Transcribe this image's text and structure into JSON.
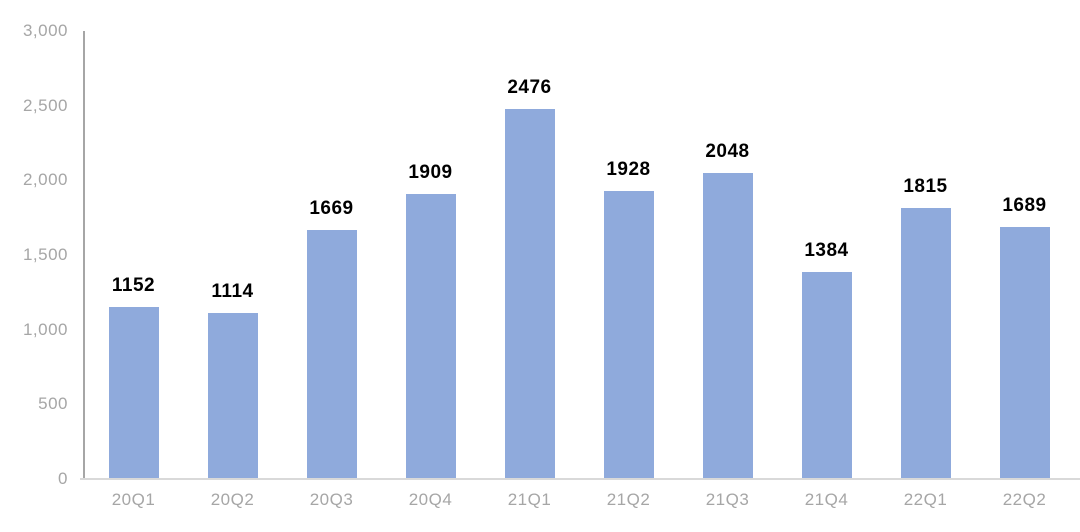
{
  "chart_data": {
    "type": "bar",
    "categories": [
      "20Q1",
      "20Q2",
      "20Q3",
      "20Q4",
      "21Q1",
      "21Q2",
      "21Q3",
      "21Q4",
      "22Q1",
      "22Q2"
    ],
    "values": [
      1152,
      1114,
      1669,
      1909,
      2476,
      1928,
      2048,
      1384,
      1815,
      1689
    ],
    "title": "",
    "xlabel": "",
    "ylabel": "",
    "ylim": [
      0,
      3000
    ],
    "ytick_interval": 500,
    "ytick_labels": [
      "0",
      "500",
      "1,000",
      "1,500",
      "2,000",
      "2,500",
      "3,000"
    ],
    "grid": false,
    "legend": false,
    "data_labels": true,
    "colors": {
      "bar_fill": "#8FAADC",
      "axis_tick_text": "#A6A6A6",
      "value_label_text": "#000000",
      "y_axis_line": "#A6A6A6",
      "x_axis_line": "#D9D9D9"
    }
  }
}
